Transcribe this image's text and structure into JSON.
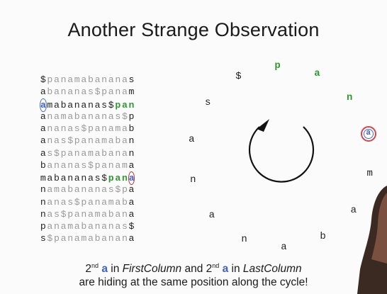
{
  "slide": {
    "title": "Another Strange Observation"
  },
  "matrix": {
    "rows": [
      "$panamabananas",
      "abananas$panam",
      "amabananas$pan",
      "anamabananas$p",
      "ananas$panamab",
      "anas$panamaban",
      "as$panamabanan",
      "bananas$panama",
      "mabananas$pana",
      "namabananas$pa",
      "nanas$panamaba",
      "nas$panamabana",
      "panamabananas$",
      "s$panamabanana"
    ]
  },
  "cycle": {
    "symbols": [
      "p",
      "a",
      "n",
      "a",
      "m",
      "a",
      "b",
      "a",
      "n",
      "a",
      "n",
      "a",
      "s",
      "$"
    ]
  },
  "caption": {
    "line1_ord1": "2",
    "line1_sup1": "nd",
    "line1_a1": "a",
    "line1_in1": " in ",
    "line1_first": "FirstColumn",
    "line1_and": " and 2",
    "line1_sup2": "nd",
    "line1_a2": "a",
    "line1_in2": " in ",
    "line1_last": "LastColumn",
    "line2": "are hiding at the same position along the cycle!"
  },
  "colors": {
    "green": "#2f9a2f",
    "blue": "#3d63c6",
    "red": "#c73030",
    "gray": "#9a9a9a"
  }
}
